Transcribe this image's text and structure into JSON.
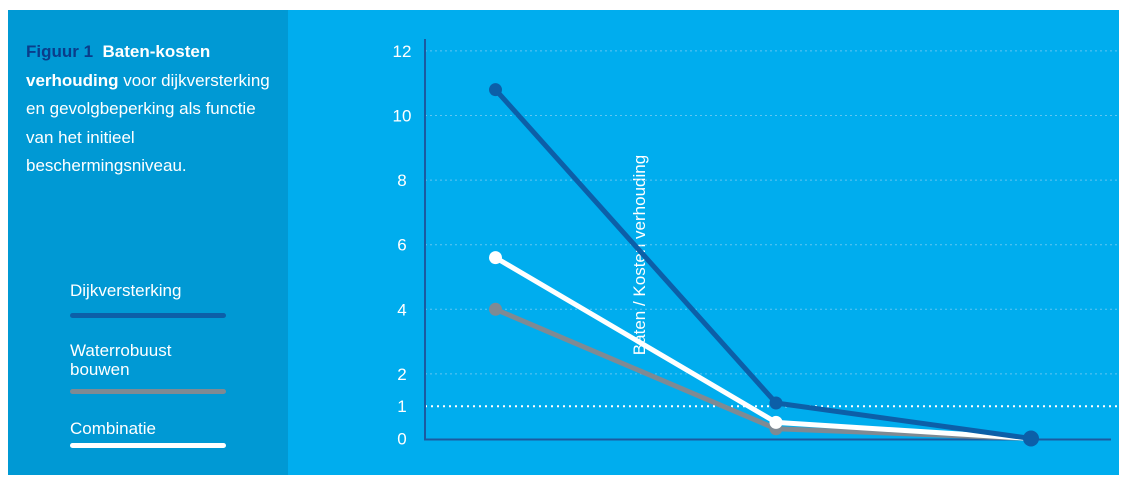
{
  "caption": {
    "figure_number": "Figuur 1",
    "title": "Baten-kosten verhouding",
    "text": " voor dijkversterking en gevolgbeperking als functie van het initieel beschermingsniveau."
  },
  "colors": {
    "panel_left": "#0099d4",
    "panel_right": "#00adee",
    "dijkversterking": "#0c5fa8",
    "waterrobuust": "#7f8a93",
    "combinatie": "#ffffff"
  },
  "chart_data": {
    "type": "line",
    "ylabel": "Baten / Kosten verhouding",
    "xlabel": "",
    "y_ticks": [
      0,
      1,
      2,
      4,
      6,
      8,
      10,
      12
    ],
    "ylim": [
      0,
      12
    ],
    "grid": "horizontal dotted",
    "reference_line": 1,
    "legend_position": "left",
    "x": [
      1,
      2,
      3
    ],
    "series": [
      {
        "name": "Dijkversterking",
        "color": "#0c5fa8",
        "values": [
          10.8,
          1.1,
          0
        ]
      },
      {
        "name": "Waterrobuust bouwen",
        "color": "#7f8a93",
        "values": [
          4.0,
          0.3,
          0
        ]
      },
      {
        "name": "Combinatie",
        "color": "#ffffff",
        "values": [
          5.6,
          0.5,
          0
        ]
      }
    ]
  }
}
